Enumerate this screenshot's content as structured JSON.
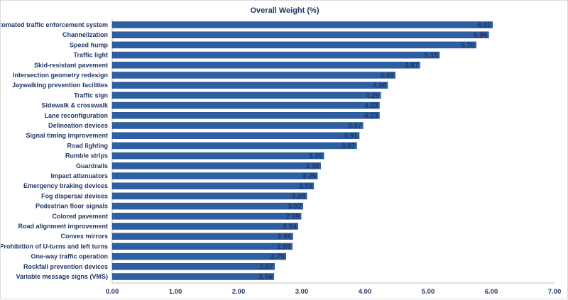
{
  "chart_data": {
    "type": "bar",
    "orientation": "horizontal",
    "title": "Overall Weight (%)",
    "xlabel": "",
    "ylabel": "",
    "categories": [
      "Automated traffic enforcement system",
      "Channelization",
      "Speed hump",
      "Traffic light",
      "Skid-resistant pavement",
      "Intersection geometry redesign",
      "Jaywalking prevention facilities",
      "Traffic sign",
      "Sidewalk & crosswalk",
      "Lane reconfiguration",
      "Delineation devices",
      "Signal timing improvement",
      "Road lighting",
      "Rumble strips",
      "Guardrails",
      "Impact attenuators",
      "Emergency braking devices",
      "Fog dispersal devices",
      "Pedestrian floor signals",
      "Colored pavement",
      "Road alignment improvement",
      "Convex mirrors",
      "Prohibition of U-turns and left turns",
      "One-way traffic operation",
      "Rockfall prevention devices",
      "Variable message signs (VMS)"
    ],
    "values": [
      6.02,
      5.96,
      5.76,
      5.18,
      4.87,
      4.48,
      4.36,
      4.25,
      4.23,
      4.23,
      3.97,
      3.91,
      3.87,
      3.35,
      3.3,
      3.25,
      3.19,
      3.08,
      3.02,
      2.99,
      2.94,
      2.86,
      2.85,
      2.75,
      2.57,
      2.56
    ],
    "data_labels": [
      "6.02",
      "5.96",
      "5.76",
      "5.18",
      "4.87",
      "4.48",
      "4.36",
      "4.25",
      "4.23",
      "4.23",
      "3.97",
      "3.91",
      "3.87",
      "3.35",
      "3.30",
      "3.25",
      "3.19",
      "3.08",
      "3.02",
      "2.99",
      "2.94",
      "2.86",
      "2.85",
      "2.75",
      "2.57",
      "2.56"
    ],
    "xlim": [
      0,
      7
    ],
    "x_ticks": [
      "0.00",
      "1.00",
      "2.00",
      "3.00",
      "4.00",
      "5.00",
      "6.00",
      "7.00"
    ],
    "grid": false,
    "legend": "none",
    "colors": {
      "bar": "#2e5fa3",
      "bar_border": "#1f4e8c",
      "text": "#1f3864",
      "axis": "#bfbfbf"
    }
  }
}
